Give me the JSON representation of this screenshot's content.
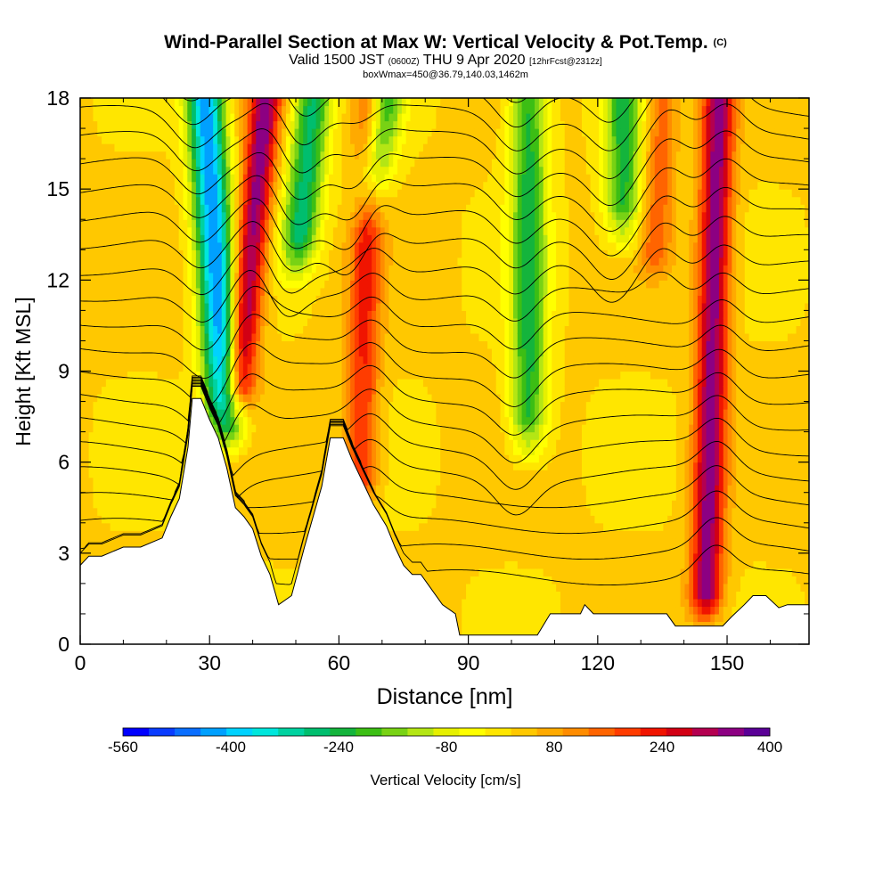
{
  "title": {
    "main": "Wind-Parallel Section at Max W: Vertical Velocity & Pot.Temp.",
    "copyright": "(C)",
    "valid_prefix": "Valid 1500 JST",
    "utc": "(0600Z)",
    "valid_date": "THU 9 Apr 2020",
    "forecast": "[12hrFcst@2312z]",
    "box": "boxWmax=450@36.79,140.03,1462m"
  },
  "chart_data": {
    "type": "heatmap",
    "xlabel": "Distance [nm]",
    "ylabel": "Height [Kft MSL]",
    "xlim": [
      0,
      169
    ],
    "ylim": [
      0,
      18
    ],
    "x_ticks": [
      "0",
      "30",
      "60",
      "90",
      "120",
      "150"
    ],
    "x_tick_values": [
      0,
      30,
      60,
      90,
      120,
      150
    ],
    "y_ticks": [
      "0",
      "3",
      "6",
      "9",
      "12",
      "15",
      "18"
    ],
    "y_tick_values": [
      0,
      3,
      6,
      9,
      12,
      15,
      18
    ],
    "colorbar": {
      "label": "Vertical Velocity [cm/s]",
      "tick_labels": [
        "-560",
        "-400",
        "-240",
        "-80",
        "80",
        "240",
        "400"
      ],
      "levels": [
        -560,
        -520,
        -480,
        -440,
        -400,
        -360,
        -320,
        -280,
        -240,
        -200,
        -160,
        -120,
        -80,
        -40,
        0,
        40,
        80,
        120,
        160,
        200,
        240,
        280,
        320,
        360,
        400
      ],
      "colors": [
        "#0000ff",
        "#0a3cff",
        "#0a6eff",
        "#00a0ff",
        "#00d2ff",
        "#00e6dc",
        "#00d2a0",
        "#00be6e",
        "#14b43c",
        "#3cbe14",
        "#78d214",
        "#b4e614",
        "#e6f000",
        "#ffff00",
        "#ffe600",
        "#ffc800",
        "#ffaa00",
        "#ff8c00",
        "#ff6400",
        "#ff3c00",
        "#f01400",
        "#d20014",
        "#b40050",
        "#8c0082",
        "#5a0096"
      ]
    },
    "terrain": [
      [
        0,
        2.6
      ],
      [
        2,
        2.9
      ],
      [
        5,
        2.9
      ],
      [
        10,
        3.2
      ],
      [
        14,
        3.2
      ],
      [
        19,
        3.5
      ],
      [
        21,
        4.2
      ],
      [
        23,
        4.8
      ],
      [
        25,
        6.5
      ],
      [
        26,
        8.1
      ],
      [
        28,
        8.1
      ],
      [
        30,
        7.4
      ],
      [
        32,
        6.8
      ],
      [
        34,
        5.8
      ],
      [
        36,
        4.5
      ],
      [
        38,
        4.2
      ],
      [
        40,
        3.8
      ],
      [
        42,
        2.9
      ],
      [
        44,
        2.3
      ],
      [
        46,
        1.3
      ],
      [
        49,
        1.6
      ],
      [
        52,
        3.2
      ],
      [
        56,
        5.2
      ],
      [
        58,
        6.8
      ],
      [
        61,
        6.8
      ],
      [
        63,
        6.1
      ],
      [
        65,
        5.5
      ],
      [
        66,
        5.2
      ],
      [
        68,
        4.6
      ],
      [
        71,
        3.9
      ],
      [
        73,
        3.2
      ],
      [
        75,
        2.6
      ],
      [
        77,
        2.3
      ],
      [
        79,
        2.3
      ],
      [
        81,
        1.9
      ],
      [
        84,
        1.3
      ],
      [
        87,
        1.0
      ],
      [
        88,
        0.3
      ],
      [
        106,
        0.3
      ],
      [
        109,
        1.0
      ],
      [
        116,
        1.0
      ],
      [
        117,
        1.3
      ],
      [
        119,
        1.0
      ],
      [
        130,
        1.0
      ],
      [
        136,
        1.0
      ],
      [
        138,
        0.6
      ],
      [
        144,
        0.6
      ],
      [
        149,
        0.6
      ],
      [
        151,
        0.9
      ],
      [
        154,
        1.3
      ],
      [
        156,
        1.6
      ],
      [
        159,
        1.6
      ],
      [
        162,
        1.2
      ],
      [
        164,
        1.3
      ],
      [
        169,
        1.3
      ]
    ],
    "updraft_cores": [
      {
        "x_top": 43,
        "x_bottom": 36,
        "y_bottom": 7.5,
        "w_max": 400
      },
      {
        "x_top": 67,
        "x_bottom": 65,
        "y_bottom": 4.5,
        "w_max": 260
      },
      {
        "x_top": 148,
        "x_bottom": 145,
        "y_bottom": 0.7,
        "w_max": 400
      },
      {
        "x_top": 135,
        "x_bottom": 133,
        "y_bottom": 12,
        "w_max": 200
      }
    ],
    "downdraft_cores": [
      {
        "x_top": 29,
        "x_bottom": 34,
        "y_bottom": 6.5,
        "w_min": -420
      },
      {
        "x_top": 54,
        "x_bottom": 50,
        "y_bottom": 12,
        "w_min": -240
      },
      {
        "x_top": 71,
        "x_bottom": 66,
        "y_bottom": 14,
        "w_min": -200
      },
      {
        "x_top": 104,
        "x_bottom": 104,
        "y_bottom": 6,
        "w_min": -200
      },
      {
        "x_top": 126,
        "x_bottom": 126,
        "y_bottom": 13,
        "w_min": -200
      }
    ],
    "isentrope_count": 22
  }
}
